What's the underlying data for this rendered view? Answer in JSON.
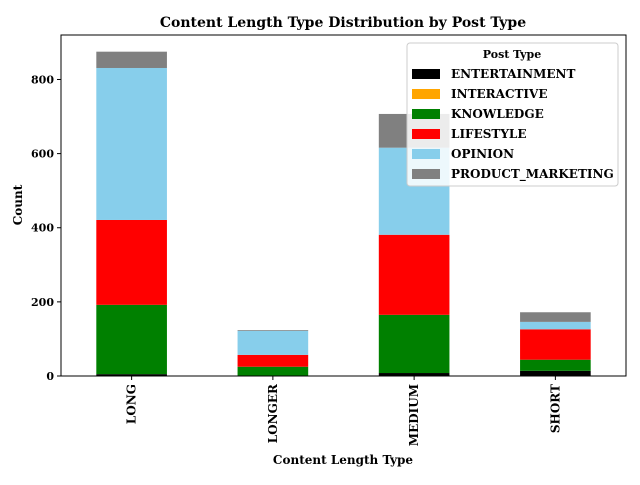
{
  "chart_data": {
    "type": "bar",
    "stacked": true,
    "title": "Content Length Type Distribution by Post Type",
    "xlabel": "Content Length Type",
    "ylabel": "Count",
    "categories": [
      "LONG",
      "LONGER",
      "MEDIUM",
      "SHORT"
    ],
    "ylim": [
      0,
      920
    ],
    "yticks": [
      0,
      200,
      400,
      600,
      800
    ],
    "legend": {
      "title": "Post Type",
      "placement": "top-right"
    },
    "series": [
      {
        "name": "ENTERTAINMENT",
        "color": "#000000",
        "values": [
          5,
          0,
          8,
          14
        ]
      },
      {
        "name": "INTERACTIVE",
        "color": "#ffa500",
        "values": [
          0,
          0,
          0,
          0
        ]
      },
      {
        "name": "KNOWLEDGE",
        "color": "#008000",
        "values": [
          187,
          25,
          157,
          30
        ]
      },
      {
        "name": "LIFESTYLE",
        "color": "#ff0000",
        "values": [
          229,
          32,
          216,
          82
        ]
      },
      {
        "name": "OPINION",
        "color": "#87ceeb",
        "values": [
          410,
          65,
          235,
          20
        ]
      },
      {
        "name": "PRODUCT_MARKETING",
        "color": "#808080",
        "values": [
          44,
          2,
          91,
          26
        ]
      }
    ]
  }
}
